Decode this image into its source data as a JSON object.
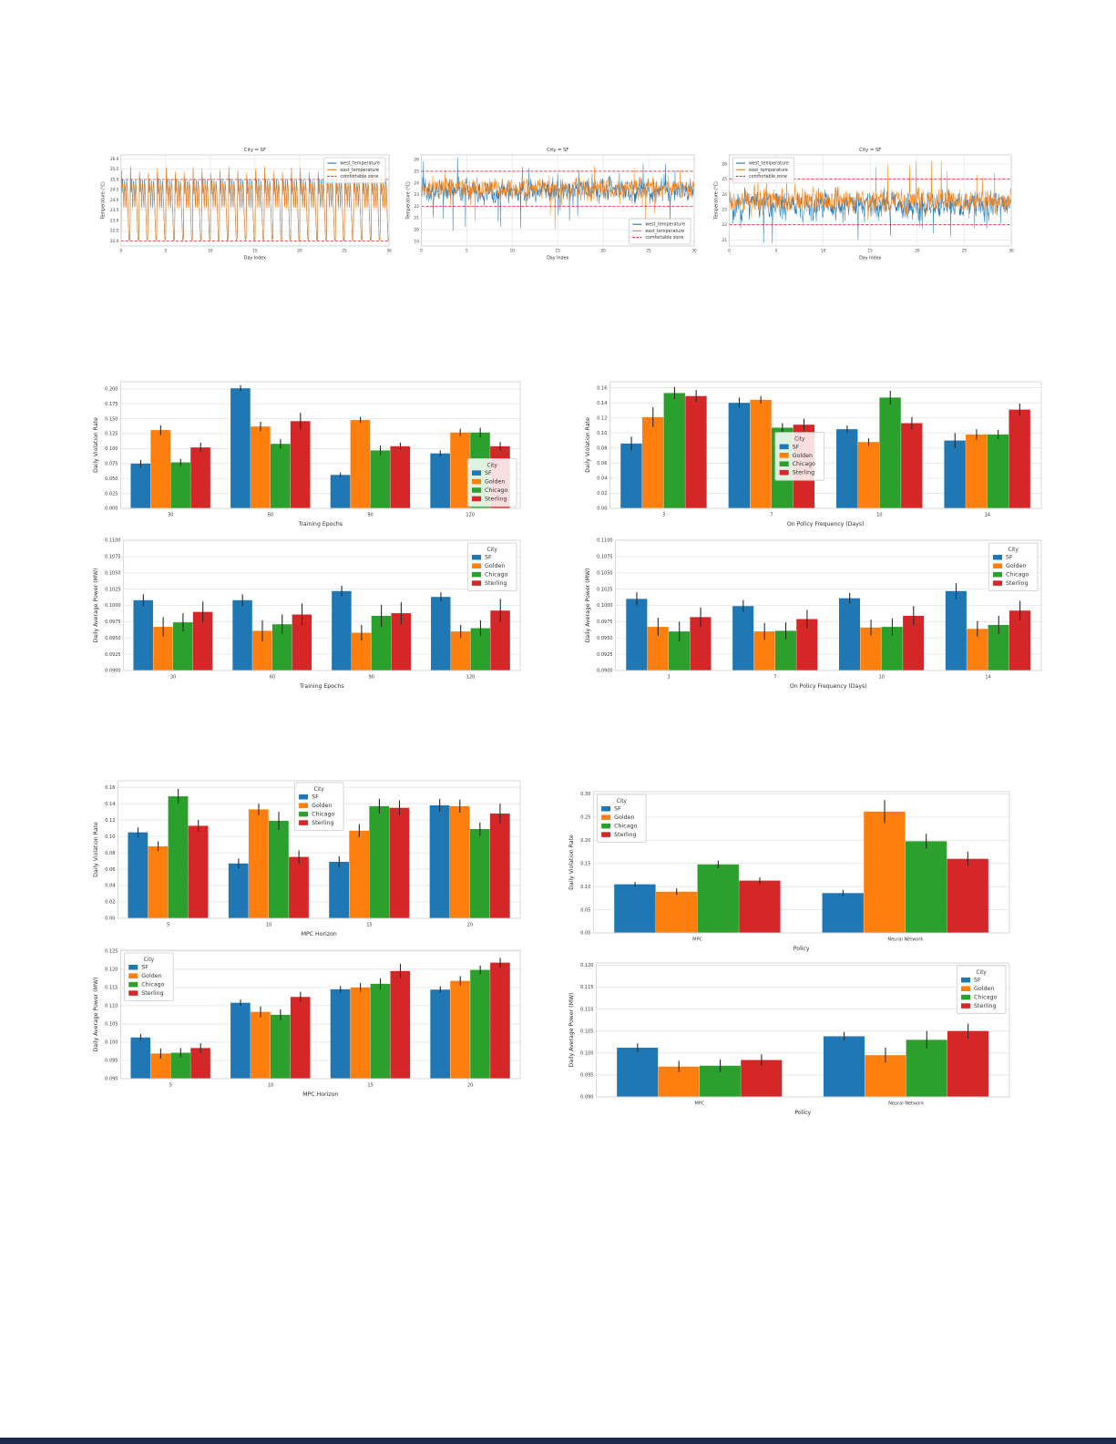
{
  "page": {
    "background": "#ffffff",
    "bottom_bar_color": "#1b2a4a"
  },
  "palette": {
    "SF": "#1f77b4",
    "Golden": "#ff7f0e",
    "Chicago": "#2ca02c",
    "Sterling": "#d62728",
    "west_temperature": "#1f77b4",
    "east_temperature": "#ff7f0e",
    "comfort_line": "#dd2222",
    "error_bar": "#2b2b2b"
  },
  "chart_data": [
    {
      "type": "line",
      "title": "City = SF",
      "xlabel": "Day Index",
      "ylabel": "Temperature (°C)",
      "xlim": [
        0,
        30
      ],
      "ylim": [
        21.75,
        26.2
      ],
      "xticks": [
        0,
        5,
        10,
        15,
        20,
        25,
        30
      ],
      "yticks": [
        22.0,
        22.5,
        23.0,
        23.5,
        24.0,
        24.5,
        25.0,
        25.5,
        26.0
      ],
      "ytick_decimals": 1,
      "comfortable_zone": [
        22,
        25
      ],
      "series": [
        {
          "name": "west_temperature",
          "color": "#1f77b4"
        },
        {
          "name": "east_temperature",
          "color": "#ff7f0e"
        }
      ],
      "legend": {
        "position": "upper right",
        "comfort_label": "comfortable zone"
      },
      "pattern": {
        "kind": "periodic",
        "seed": 11,
        "base": 22.05
      }
    },
    {
      "type": "line",
      "title": "City = SF",
      "xlabel": "Day Index",
      "ylabel": "Temperature (°C)",
      "xlim": [
        0,
        30
      ],
      "ylim": [
        18.6,
        26.4
      ],
      "xticks": [
        0,
        5,
        10,
        15,
        20,
        25,
        30
      ],
      "yticks": [
        19,
        20,
        21,
        22,
        23,
        24,
        25,
        26
      ],
      "ytick_decimals": 0,
      "comfortable_zone": [
        22,
        25
      ],
      "series": [
        {
          "name": "west_temperature",
          "color": "#1f77b4"
        },
        {
          "name": "east_temperature",
          "color": "#ff7f0e"
        }
      ],
      "legend": {
        "position": "lower right",
        "comfort_label": "comfortable zone"
      },
      "pattern": {
        "kind": "noisy",
        "seed": 23,
        "series_params": [
          {
            "mean": 23.35,
            "sd": 0.42,
            "down_prob": 0.014,
            "down_mag": [
              1.2,
              3.8
            ],
            "up_prob": 0.007,
            "up_mag": [
              1.0,
              2.3
            ]
          },
          {
            "mean": 23.55,
            "sd": 0.38,
            "down_prob": 0.011,
            "down_mag": [
              1.0,
              3.2
            ],
            "up_prob": 0.009,
            "up_mag": [
              1.0,
              2.4
            ]
          }
        ]
      }
    },
    {
      "type": "line",
      "title": "City = SF",
      "xlabel": "Day Index",
      "ylabel": "Temperature (°C)",
      "xlim": [
        0,
        30
      ],
      "ylim": [
        20.6,
        26.6
      ],
      "xticks": [
        0,
        5,
        10,
        15,
        20,
        25,
        30
      ],
      "yticks": [
        21,
        22,
        23,
        24,
        25,
        26
      ],
      "ytick_decimals": 0,
      "comfortable_zone": [
        22,
        25
      ],
      "series": [
        {
          "name": "west_temperature",
          "color": "#1f77b4"
        },
        {
          "name": "east_temperature",
          "color": "#ff7f0e"
        }
      ],
      "legend": {
        "position": "upper left",
        "comfort_label": "comfortable zone"
      },
      "pattern": {
        "kind": "noisy",
        "seed": 37,
        "series_params": [
          {
            "mean": 23.3,
            "sd": 0.38,
            "down_prob": 0.02,
            "down_mag": [
              0.7,
              2.4
            ],
            "up_prob": 0.005,
            "up_mag": [
              0.7,
              1.5
            ]
          },
          {
            "mean": 23.55,
            "sd": 0.34,
            "down_prob": 0.007,
            "down_mag": [
              0.5,
              1.5
            ],
            "up_prob": 0.013,
            "up_mag": [
              0.8,
              2.8
            ]
          }
        ]
      }
    },
    {
      "type": "bar",
      "xlabel": "Training Epochs",
      "ylabel": "Daily Violation Rate",
      "categories": [
        "30",
        "60",
        "90",
        "120"
      ],
      "ylim": [
        0,
        0.212
      ],
      "yticks": [
        0.0,
        0.025,
        0.05,
        0.075,
        0.1,
        0.125,
        0.15,
        0.175,
        0.2
      ],
      "ytick_decimals": 3,
      "series": [
        {
          "name": "SF",
          "values": [
            0.075,
            0.201,
            0.056,
            0.092
          ],
          "errors": [
            0.006,
            0.005,
            0.004,
            0.005
          ]
        },
        {
          "name": "Golden",
          "values": [
            0.131,
            0.137,
            0.148,
            0.127
          ],
          "errors": [
            0.008,
            0.008,
            0.005,
            0.006
          ]
        },
        {
          "name": "Chicago",
          "values": [
            0.077,
            0.108,
            0.097,
            0.127
          ],
          "errors": [
            0.006,
            0.008,
            0.008,
            0.008
          ]
        },
        {
          "name": "Sterling",
          "values": [
            0.102,
            0.146,
            0.104,
            0.104
          ],
          "errors": [
            0.008,
            0.014,
            0.006,
            0.007
          ]
        }
      ],
      "legend": {
        "title": "City",
        "position": "lower right"
      }
    },
    {
      "type": "bar",
      "xlabel": "On Policy Frequency (Days)",
      "ylabel": "Daily Violation Rate",
      "categories": [
        "3",
        "7",
        "10",
        "14"
      ],
      "ylim": [
        0,
        0.168
      ],
      "yticks": [
        0.0,
        0.02,
        0.04,
        0.06,
        0.08,
        0.1,
        0.12,
        0.14,
        0.16
      ],
      "ytick_decimals": 2,
      "series": [
        {
          "name": "SF",
          "values": [
            0.086,
            0.14,
            0.105,
            0.09
          ],
          "errors": [
            0.009,
            0.007,
            0.005,
            0.01
          ]
        },
        {
          "name": "Golden",
          "values": [
            0.121,
            0.144,
            0.088,
            0.098
          ],
          "errors": [
            0.013,
            0.005,
            0.005,
            0.007
          ]
        },
        {
          "name": "Chicago",
          "values": [
            0.153,
            0.107,
            0.147,
            0.098
          ],
          "errors": [
            0.008,
            0.006,
            0.009,
            0.006
          ]
        },
        {
          "name": "Sterling",
          "values": [
            0.149,
            0.111,
            0.113,
            0.131
          ],
          "errors": [
            0.008,
            0.008,
            0.008,
            0.008
          ]
        }
      ],
      "legend": {
        "title": "City",
        "position": "center"
      }
    },
    {
      "type": "bar",
      "xlabel": "Training Epochs",
      "ylabel": "Daily Average Power (MW)",
      "categories": [
        "30",
        "60",
        "90",
        "120"
      ],
      "ylim": [
        0.09,
        0.11
      ],
      "yticks": [
        0.09,
        0.0925,
        0.095,
        0.0975,
        0.1,
        0.1025,
        0.105,
        0.1075,
        0.11
      ],
      "ytick_decimals": 4,
      "series": [
        {
          "name": "SF",
          "values": [
            0.1008,
            0.1008,
            0.1022,
            0.1013
          ],
          "errors": [
            0.0009,
            0.0009,
            0.0008,
            0.0007
          ]
        },
        {
          "name": "Golden",
          "values": [
            0.0967,
            0.0961,
            0.0958,
            0.096
          ],
          "errors": [
            0.0015,
            0.0016,
            0.0012,
            0.001
          ]
        },
        {
          "name": "Chicago",
          "values": [
            0.0974,
            0.0971,
            0.0984,
            0.0965
          ],
          "errors": [
            0.0014,
            0.0015,
            0.0017,
            0.0012
          ]
        },
        {
          "name": "Sterling",
          "values": [
            0.099,
            0.0986,
            0.0988,
            0.0992
          ],
          "errors": [
            0.0016,
            0.0017,
            0.0017,
            0.0018
          ]
        }
      ],
      "legend": {
        "title": "City",
        "position": "upper right"
      }
    },
    {
      "type": "bar",
      "xlabel": "On Policy Frequency (Days)",
      "ylabel": "Daily Average Power (MW)",
      "categories": [
        "3",
        "7",
        "10",
        "14"
      ],
      "ylim": [
        0.09,
        0.11
      ],
      "yticks": [
        0.09,
        0.0925,
        0.095,
        0.0975,
        0.1,
        0.1025,
        0.105,
        0.1075,
        0.11
      ],
      "ytick_decimals": 4,
      "series": [
        {
          "name": "SF",
          "values": [
            0.101,
            0.0999,
            0.1011,
            0.1022
          ],
          "errors": [
            0.001,
            0.0009,
            0.0008,
            0.0012
          ]
        },
        {
          "name": "Golden",
          "values": [
            0.0967,
            0.096,
            0.0966,
            0.0964
          ],
          "errors": [
            0.0014,
            0.0013,
            0.0012,
            0.0012
          ]
        },
        {
          "name": "Chicago",
          "values": [
            0.096,
            0.0961,
            0.0967,
            0.097
          ],
          "errors": [
            0.0015,
            0.0013,
            0.0013,
            0.0014
          ]
        },
        {
          "name": "Sterling",
          "values": [
            0.0982,
            0.0979,
            0.0984,
            0.0992
          ],
          "errors": [
            0.0015,
            0.0014,
            0.0015,
            0.0015
          ]
        }
      ],
      "legend": {
        "title": "City",
        "position": "upper right"
      }
    },
    {
      "type": "bar",
      "xlabel": "MPC Horizon",
      "ylabel": "Daily Violation Rate",
      "categories": [
        "5",
        "10",
        "15",
        "20"
      ],
      "ylim": [
        0,
        0.168
      ],
      "yticks": [
        0.0,
        0.02,
        0.04,
        0.06,
        0.08,
        0.1,
        0.12,
        0.14,
        0.16
      ],
      "ytick_decimals": 2,
      "series": [
        {
          "name": "SF",
          "values": [
            0.105,
            0.067,
            0.069,
            0.138
          ],
          "errors": [
            0.006,
            0.006,
            0.007,
            0.008
          ]
        },
        {
          "name": "Golden",
          "values": [
            0.088,
            0.133,
            0.107,
            0.137
          ],
          "errors": [
            0.006,
            0.007,
            0.008,
            0.008
          ]
        },
        {
          "name": "Chicago",
          "values": [
            0.149,
            0.119,
            0.137,
            0.109
          ],
          "errors": [
            0.009,
            0.011,
            0.009,
            0.008
          ]
        },
        {
          "name": "Sterling",
          "values": [
            0.113,
            0.075,
            0.135,
            0.128
          ],
          "errors": [
            0.007,
            0.008,
            0.009,
            0.012
          ]
        }
      ],
      "legend": {
        "title": "City",
        "position": "upper center"
      }
    },
    {
      "type": "bar",
      "xlabel": "Policy",
      "ylabel": "Daily Violation Rate",
      "categories": [
        "MPC",
        "Neural Network"
      ],
      "ylim": [
        0,
        0.305
      ],
      "yticks": [
        0.0,
        0.05,
        0.1,
        0.15,
        0.2,
        0.25,
        0.3
      ],
      "ytick_decimals": 2,
      "series": [
        {
          "name": "SF",
          "values": [
            0.105,
            0.086
          ],
          "errors": [
            0.005,
            0.007
          ]
        },
        {
          "name": "Golden",
          "values": [
            0.089,
            0.262
          ],
          "errors": [
            0.007,
            0.025
          ]
        },
        {
          "name": "Chicago",
          "values": [
            0.148,
            0.198
          ],
          "errors": [
            0.008,
            0.016
          ]
        },
        {
          "name": "Sterling",
          "values": [
            0.113,
            0.16
          ],
          "errors": [
            0.007,
            0.015
          ]
        }
      ],
      "legend": {
        "title": "City",
        "position": "upper left"
      }
    },
    {
      "type": "bar",
      "xlabel": "MPC Horizon",
      "ylabel": "Daily Average Power (MW)",
      "categories": [
        "5",
        "10",
        "15",
        "20"
      ],
      "ylim": [
        0.09,
        0.1252
      ],
      "yticks": [
        0.09,
        0.095,
        0.1,
        0.105,
        0.11,
        0.115,
        0.12,
        0.125
      ],
      "ytick_decimals": 3,
      "series": [
        {
          "name": "SF",
          "values": [
            0.1013,
            0.1108,
            0.1145,
            0.1144
          ],
          "errors": [
            0.0009,
            0.0009,
            0.0009,
            0.0009
          ]
        },
        {
          "name": "Golden",
          "values": [
            0.0969,
            0.1083,
            0.115,
            0.1168
          ],
          "errors": [
            0.0014,
            0.0015,
            0.0012,
            0.0013
          ]
        },
        {
          "name": "Chicago",
          "values": [
            0.0971,
            0.1075,
            0.116,
            0.1198
          ],
          "errors": [
            0.0013,
            0.0015,
            0.0015,
            0.0012
          ]
        },
        {
          "name": "Sterling",
          "values": [
            0.0984,
            0.1124,
            0.1195,
            0.1218
          ],
          "errors": [
            0.0013,
            0.0014,
            0.002,
            0.0013
          ]
        }
      ],
      "legend": {
        "title": "City",
        "position": "upper left"
      }
    },
    {
      "type": "bar",
      "xlabel": "Policy",
      "ylabel": "Daily Average Power (MW)",
      "categories": [
        "MPC",
        "Neural Network"
      ],
      "ylim": [
        0.09,
        0.1205
      ],
      "yticks": [
        0.09,
        0.095,
        0.1,
        0.105,
        0.11,
        0.115,
        0.12
      ],
      "ytick_decimals": 3,
      "series": [
        {
          "name": "SF",
          "values": [
            0.1012,
            0.1038
          ],
          "errors": [
            0.001,
            0.001
          ]
        },
        {
          "name": "Golden",
          "values": [
            0.0969,
            0.0995
          ],
          "errors": [
            0.0013,
            0.0017
          ]
        },
        {
          "name": "Chicago",
          "values": [
            0.0971,
            0.103
          ],
          "errors": [
            0.0014,
            0.002
          ]
        },
        {
          "name": "Sterling",
          "values": [
            0.0984,
            0.105
          ],
          "errors": [
            0.0013,
            0.0017
          ]
        }
      ],
      "legend": {
        "title": "City",
        "position": "upper right"
      }
    }
  ]
}
